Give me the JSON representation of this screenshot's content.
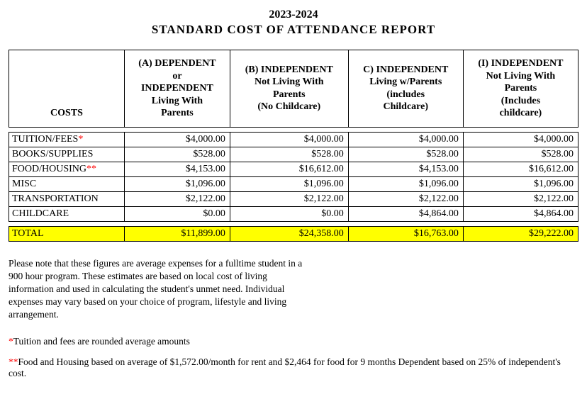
{
  "title": "2023-2024",
  "subtitle": "STANDARD COST OF ATTENDANCE REPORT",
  "columns": {
    "costs": "COSTS",
    "colA": "(A) DEPENDENT\nor\nINDEPENDENT\nLiving With\nParents",
    "colB": "(B) INDEPENDENT\nNot Living With\nParents\n(No Childcare)",
    "colC": "C) INDEPENDENT\nLiving w/Parents\n(includes\nChildcare)",
    "colI": "(I) INDEPENDENT\nNot Living With\nParents\n(Includes\nchildcare)"
  },
  "rows": [
    {
      "label": "TUITION/FEES",
      "suffix": "*",
      "suffix_color": "#ff0000",
      "a": "$4,000.00",
      "b": "$4,000.00",
      "c": "$4,000.00",
      "i": "$4,000.00"
    },
    {
      "label": "BOOKS/SUPPLIES",
      "suffix": "",
      "suffix_color": "",
      "a": "$528.00",
      "b": "$528.00",
      "c": "$528.00",
      "i": "$528.00"
    },
    {
      "label": "FOOD/HOUSING",
      "suffix": "**",
      "suffix_color": "#ff0000",
      "a": "$4,153.00",
      "b": "$16,612.00",
      "c": "$4,153.00",
      "i": "$16,612.00"
    },
    {
      "label": "MISC",
      "suffix": "",
      "suffix_color": "",
      "a": "$1,096.00",
      "b": "$1,096.00",
      "c": "$1,096.00",
      "i": "$1,096.00"
    },
    {
      "label": "TRANSPORTATION",
      "suffix": "",
      "suffix_color": "",
      "a": "$2,122.00",
      "b": "$2,122.00",
      "c": "$2,122.00",
      "i": "$2,122.00"
    },
    {
      "label": "CHILDCARE",
      "suffix": "",
      "suffix_color": "",
      "a": "$0.00",
      "b": "$0.00",
      "c": "$4,864.00",
      "i": "$4,864.00"
    }
  ],
  "total": {
    "label": "TOTAL",
    "a": "$11,899.00",
    "b": "$24,358.00",
    "c": "$16,763.00",
    "i": "$29,222.00"
  },
  "notes": "Please note that these figures are average expenses for a fulltime student in a 900 hour program. These estimates are based on local cost of living information and used in calculating the student's unmet need. Individual expenses may vary based on your choice of program, lifestyle and living arrangement.",
  "footnote1_star": "*",
  "footnote1": "Tuition and fees are rounded average amounts",
  "footnote2_star": "**",
  "footnote2": "Food and Housing based on average of $1,572.00/month for rent and $2,464 for food for 9 months Dependent based on 25% of independent's cost.",
  "style": {
    "highlight_color": "#ffff00",
    "star_color": "#ff0000"
  }
}
